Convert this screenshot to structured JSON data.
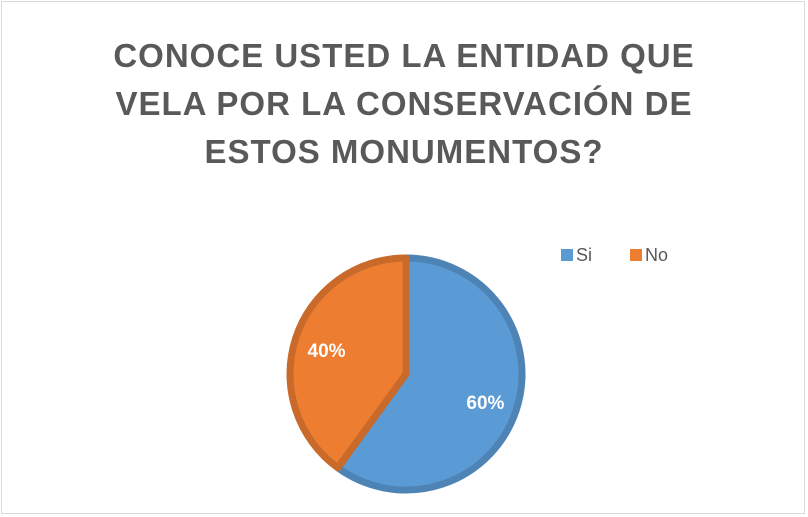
{
  "chart_data": {
    "type": "pie",
    "title": "CONOCE USTED LA ENTIDAD QUE VELA POR LA CONSERVACIÓN DE ESTOS MONUMENTOS?",
    "categories": [
      "Si",
      "No"
    ],
    "values": [
      60,
      40
    ],
    "value_labels": [
      "60%",
      "40%"
    ],
    "colors": [
      "#5b9bd5",
      "#ed7d31"
    ],
    "legend": "top-right"
  }
}
